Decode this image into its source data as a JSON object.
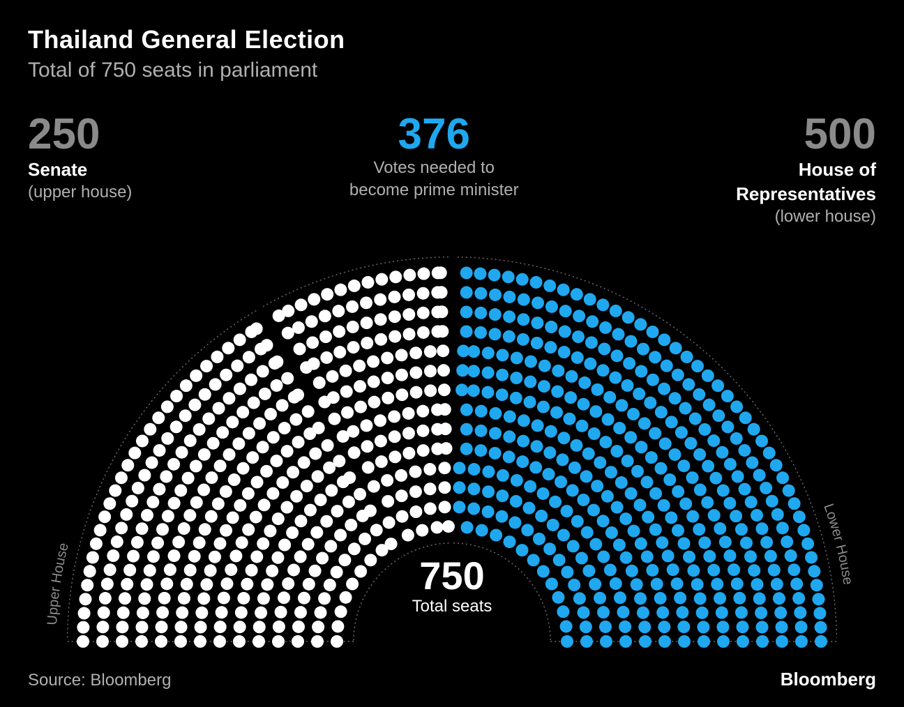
{
  "title": "Thailand General Election",
  "subtitle": "Total of 750 seats in parliament",
  "stats": {
    "senate": {
      "value": "250",
      "label": "Senate",
      "sub": "(upper house)"
    },
    "pm": {
      "value": "376",
      "label": "Votes needed to",
      "sub": "become prime minister"
    },
    "house": {
      "value": "500",
      "label": "House of",
      "label2": "Representatives",
      "sub": "(lower house)"
    }
  },
  "total": {
    "value": "750",
    "label": "Total seats"
  },
  "source": "Source: Bloomberg",
  "brand": "Bloomberg",
  "parliament_chart": {
    "type": "parliament-hemicycle",
    "total_seats": 750,
    "groups": [
      {
        "name": "senate",
        "seats": 250,
        "color": "#ffffff",
        "arc_label": "Upper House"
      },
      {
        "name": "pm_threshold",
        "seats": 126,
        "color": "#ffffff"
      },
      {
        "name": "lower_house",
        "seats": 374,
        "color": "#1fa8f0",
        "arc_label": "Lower House"
      }
    ],
    "threshold_split_at": 376,
    "rows": 14,
    "dot_radius": 9,
    "inner_radius": 165,
    "outer_radius": 560,
    "row_gap": 28,
    "gap_degrees": 2.0,
    "background_color": "#000000",
    "arc_stroke_color": "#6b6b6b",
    "arc_stroke_dasharray": "2 4",
    "arc_label_color": "#8a8a8a",
    "arc_label_fontsize": 20
  }
}
